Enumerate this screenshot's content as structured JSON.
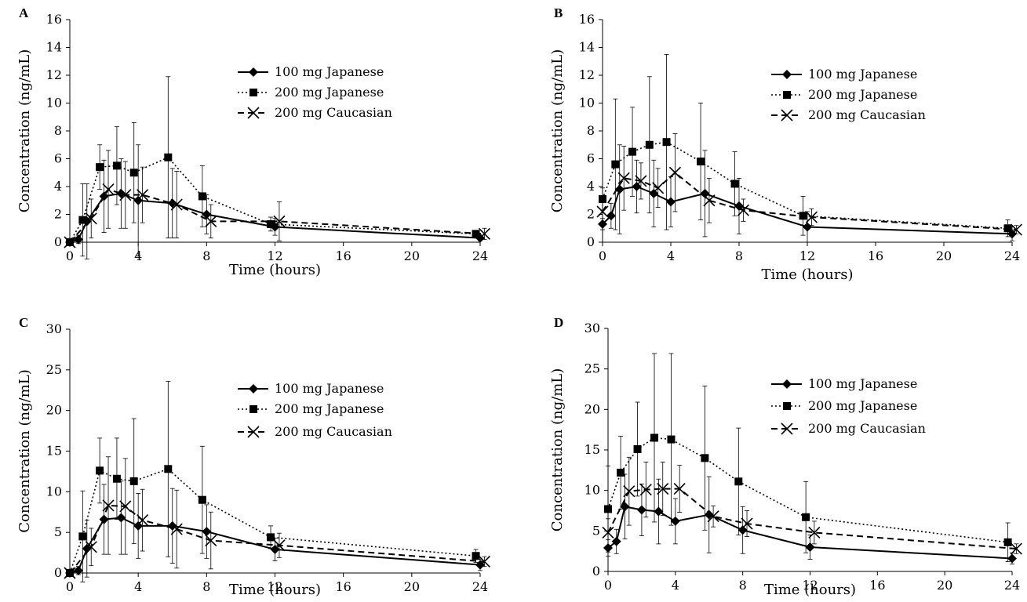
{
  "chart_data": [
    {
      "panel": "A",
      "type": "line",
      "xlabel": "Time (hours)",
      "ylabel": "Concentration (ng/mL)",
      "xlim": [
        0,
        24
      ],
      "ylim": [
        0,
        16
      ],
      "xticks": [
        0,
        4,
        8,
        12,
        16,
        20,
        24
      ],
      "yticks": [
        0,
        2,
        4,
        6,
        8,
        10,
        12,
        14,
        16
      ],
      "legend_position": "upper-right",
      "series": [
        {
          "name": "100 mg Japanese",
          "style": "solid",
          "marker": "diamond",
          "x": [
            0,
            0.5,
            1,
            2,
            3,
            4,
            6,
            8,
            12,
            24
          ],
          "y": [
            0,
            0.2,
            1.5,
            3.3,
            3.5,
            3.0,
            2.8,
            2.0,
            1.1,
            0.3
          ],
          "err": [
            0,
            0.3,
            2.7,
            2.6,
            2.5,
            4.0,
            2.5,
            1.4,
            0.6,
            0.2
          ]
        },
        {
          "name": "200 mg Japanese",
          "style": "dotted",
          "marker": "square",
          "x": [
            0,
            0.75,
            1.75,
            2.75,
            3.75,
            5.75,
            7.75,
            11.75,
            23.75
          ],
          "y": [
            0,
            1.6,
            5.4,
            5.5,
            5.0,
            6.1,
            3.3,
            1.3,
            0.6
          ],
          "err": [
            0,
            2.6,
            1.6,
            2.8,
            3.6,
            5.8,
            2.2,
            0.5,
            0.2
          ]
        },
        {
          "name": "200 mg Caucasian",
          "style": "dashed",
          "marker": "x",
          "x": [
            0,
            1.25,
            2.25,
            3.25,
            4.25,
            6.25,
            8.25,
            12.25,
            24.25
          ],
          "y": [
            0,
            1.7,
            3.8,
            3.4,
            3.4,
            2.7,
            1.5,
            1.5,
            0.6
          ],
          "err": [
            0,
            1.4,
            2.8,
            2.4,
            2.0,
            2.4,
            1.2,
            1.4,
            0.4
          ]
        }
      ]
    },
    {
      "panel": "B",
      "type": "line",
      "xlabel": "Time (hours)",
      "ylabel": "Concentration (ng/mL)",
      "xlim": [
        0,
        24
      ],
      "ylim": [
        0,
        16
      ],
      "xticks": [
        0,
        4,
        8,
        12,
        16,
        20,
        24
      ],
      "yticks": [
        0,
        2,
        4,
        6,
        8,
        10,
        12,
        14,
        16
      ],
      "legend_position": "upper-right",
      "series": [
        {
          "name": "100 mg Japanese",
          "style": "solid",
          "marker": "diamond",
          "x": [
            0,
            0.5,
            1,
            2,
            3,
            4,
            6,
            8,
            12,
            24
          ],
          "y": [
            1.3,
            1.9,
            3.8,
            4.0,
            3.5,
            2.9,
            3.5,
            2.6,
            1.1,
            0.6
          ],
          "err": [
            0.4,
            0.9,
            3.2,
            1.9,
            2.4,
            1.8,
            3.1,
            2.0,
            1.1,
            0.5
          ]
        },
        {
          "name": "200 mg Japanese",
          "style": "dotted",
          "marker": "square",
          "x": [
            0,
            0.75,
            1.75,
            2.75,
            3.75,
            5.75,
            7.75,
            11.75,
            23.75
          ],
          "y": [
            3.1,
            5.6,
            6.5,
            7.0,
            7.2,
            5.8,
            4.2,
            1.9,
            1.0
          ],
          "err": [
            0.8,
            4.7,
            3.2,
            4.9,
            6.3,
            4.2,
            2.3,
            1.4,
            0.6
          ]
        },
        {
          "name": "200 mg Caucasian",
          "style": "dashed",
          "marker": "x",
          "x": [
            0,
            1.25,
            2.25,
            3.25,
            4.25,
            6.25,
            8.25,
            12.25,
            24.25
          ],
          "y": [
            2.2,
            4.6,
            4.4,
            3.9,
            5.0,
            3.0,
            2.3,
            1.8,
            0.9
          ],
          "err": [
            0.8,
            2.3,
            1.3,
            1.4,
            2.8,
            1.6,
            0.8,
            0.6,
            0.3
          ]
        }
      ]
    },
    {
      "panel": "C",
      "type": "line",
      "xlabel": "Time (hours)",
      "ylabel": "Concentration (ng/mL)",
      "xlim": [
        0,
        24
      ],
      "ylim": [
        0,
        30
      ],
      "xticks": [
        0,
        4,
        8,
        12,
        16,
        20,
        24
      ],
      "yticks": [
        0,
        5,
        10,
        15,
        20,
        25,
        30
      ],
      "legend_position": "upper-right",
      "series": [
        {
          "name": "100 mg Japanese",
          "style": "solid",
          "marker": "diamond",
          "x": [
            0,
            0.5,
            1,
            2,
            3,
            4,
            6,
            8,
            12,
            24
          ],
          "y": [
            0,
            0.3,
            3.0,
            6.6,
            6.8,
            5.8,
            5.8,
            5.1,
            2.9,
            1.0
          ],
          "err": [
            0,
            0.5,
            3.5,
            4.3,
            4.5,
            4.0,
            4.6,
            3.3,
            1.4,
            0.7
          ]
        },
        {
          "name": "200 mg Japanese",
          "style": "dotted",
          "marker": "square",
          "x": [
            0,
            0.75,
            1.75,
            2.75,
            3.75,
            5.75,
            7.75,
            11.75,
            23.75
          ],
          "y": [
            0,
            4.5,
            12.6,
            11.6,
            11.3,
            12.8,
            9.0,
            4.4,
            2.1
          ],
          "err": [
            0,
            5.6,
            4.0,
            5.0,
            7.7,
            10.8,
            6.6,
            1.4,
            0.8
          ]
        },
        {
          "name": "200 mg Caucasian",
          "style": "dashed",
          "marker": "x",
          "x": [
            0,
            1.25,
            2.25,
            3.25,
            4.25,
            6.25,
            8.25,
            12.25,
            24.25
          ],
          "y": [
            0,
            3.2,
            8.3,
            8.2,
            6.5,
            5.4,
            4.0,
            3.4,
            1.4
          ],
          "err": [
            0,
            2.3,
            6.0,
            5.9,
            3.8,
            4.8,
            3.5,
            1.5,
            0.6
          ]
        }
      ]
    },
    {
      "panel": "D",
      "type": "line",
      "xlabel": "Time (hours)",
      "ylabel": "Concentration (ng/mL)",
      "xlim": [
        0,
        24
      ],
      "ylim": [
        0,
        30
      ],
      "xticks": [
        0,
        4,
        8,
        12,
        16,
        20,
        24
      ],
      "yticks": [
        0,
        5,
        10,
        15,
        20,
        25,
        30
      ],
      "legend_position": "upper-right",
      "series": [
        {
          "name": "100 mg Japanese",
          "style": "solid",
          "marker": "diamond",
          "x": [
            0,
            0.5,
            1,
            2,
            3,
            4,
            6,
            8,
            12,
            24
          ],
          "y": [
            2.9,
            3.7,
            8.0,
            7.6,
            7.4,
            6.2,
            7.0,
            5.1,
            3.0,
            1.6
          ],
          "err": [
            1.0,
            1.5,
            4.0,
            3.2,
            4.0,
            2.8,
            4.7,
            2.9,
            1.5,
            0.7
          ]
        },
        {
          "name": "200 mg Japanese",
          "style": "dotted",
          "marker": "square",
          "x": [
            0,
            0.75,
            1.75,
            2.75,
            3.75,
            5.75,
            7.75,
            11.75,
            23.75
          ],
          "y": [
            7.7,
            12.2,
            15.1,
            16.5,
            16.3,
            14.0,
            11.1,
            6.7,
            3.6
          ],
          "err": [
            5.3,
            4.5,
            5.8,
            10.4,
            10.6,
            8.9,
            6.6,
            4.4,
            2.4
          ]
        },
        {
          "name": "200 mg Caucasian",
          "style": "dashed",
          "marker": "x",
          "x": [
            0,
            1.25,
            2.25,
            3.25,
            4.25,
            6.25,
            8.25,
            12.25,
            24.25
          ],
          "y": [
            4.8,
            9.9,
            10.1,
            10.2,
            10.2,
            6.8,
            5.9,
            4.8,
            2.8
          ],
          "err": [
            1.7,
            4.2,
            3.4,
            3.3,
            2.9,
            1.3,
            1.6,
            1.4,
            0.6
          ]
        }
      ]
    }
  ]
}
